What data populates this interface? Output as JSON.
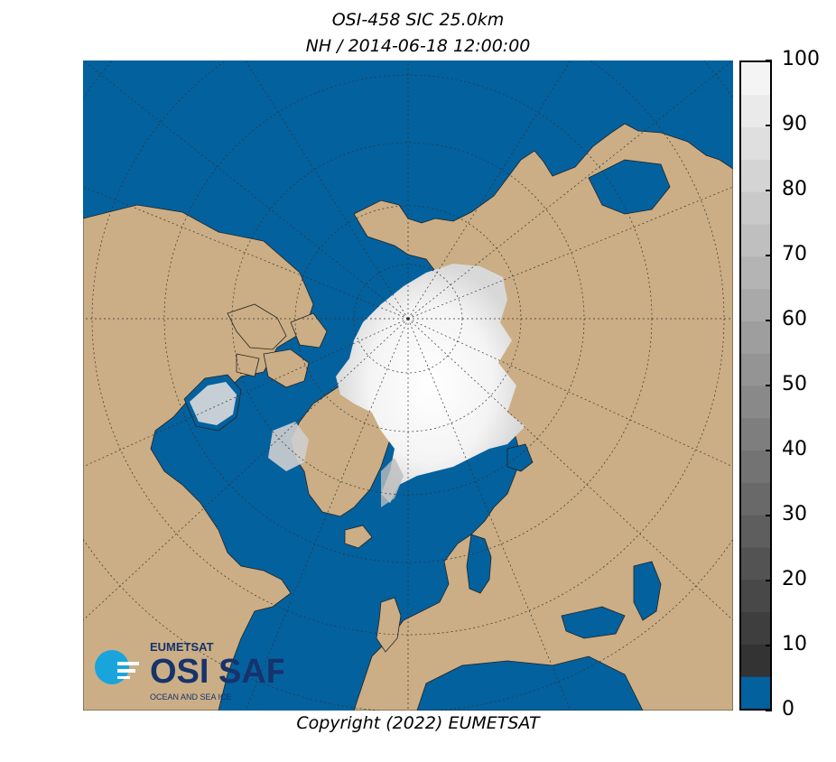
{
  "title": {
    "line1": "OSI-458 SIC 25.0km",
    "line2": "NH / 2014-06-18 12:00:00"
  },
  "copyright": "Copyright (2022)  EUMETSAT",
  "logo": {
    "brand": "EUMETSAT",
    "name": "OSI SAF",
    "tagline": "OCEAN AND SEA ICE"
  },
  "colorbar": {
    "min": 0,
    "max": 100,
    "step": 5,
    "tick_labels": [
      "0",
      "10",
      "20",
      "30",
      "40",
      "50",
      "60",
      "70",
      "80",
      "90",
      "100"
    ],
    "ocean_color": "#03619e",
    "land_color": "#cbae85",
    "ice_colormap": "greys"
  },
  "map": {
    "projection": "north-polar-stereographic",
    "graticule": "dotted"
  }
}
